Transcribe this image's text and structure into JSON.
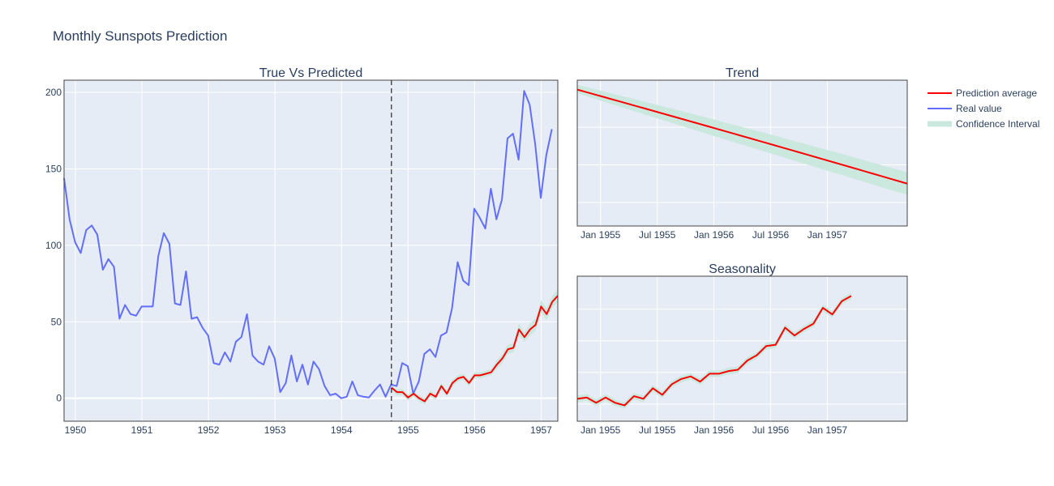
{
  "title": "Monthly Sunspots Prediction",
  "colors": {
    "plot_bg": "#e5ecf6",
    "grid": "#ffffff",
    "real": "#636efa",
    "prediction": "#ff0000",
    "confidence": "#cbe8de",
    "text": "#2a3f5f"
  },
  "legend": {
    "position": "right",
    "items": [
      {
        "label": "Prediction average",
        "color": "#ff0000",
        "style": "line"
      },
      {
        "label": "Real value",
        "color": "#636efa",
        "style": "line"
      },
      {
        "label": "Confidence Interval",
        "color": "#cbe8de",
        "style": "band"
      }
    ]
  },
  "chart_data": [
    {
      "type": "line",
      "title": "True Vs Predicted",
      "x_unit": "year",
      "xlim": [
        1949.83,
        1957.25
      ],
      "ylim": [
        -15,
        208
      ],
      "x_ticks": [
        {
          "value": 1950,
          "label": "1950"
        },
        {
          "value": 1951,
          "label": "1951"
        },
        {
          "value": 1952,
          "label": "1952"
        },
        {
          "value": 1953,
          "label": "1953"
        },
        {
          "value": 1954,
          "label": "1954"
        },
        {
          "value": 1955,
          "label": "1955"
        },
        {
          "value": 1956,
          "label": "1956"
        },
        {
          "value": 1957,
          "label": "1957"
        }
      ],
      "y_ticks": [
        {
          "value": 0,
          "label": "0"
        },
        {
          "value": 50,
          "label": "50"
        },
        {
          "value": 100,
          "label": "100"
        },
        {
          "value": 150,
          "label": "150"
        },
        {
          "value": 200,
          "label": "200"
        }
      ],
      "grid": true,
      "split_marker_x": 1954.75,
      "series": [
        {
          "name": "Real value",
          "x_start": 1949.83,
          "x_step": 0.0833,
          "values": [
            144,
            117,
            102,
            95,
            110,
            113,
            107,
            84,
            91,
            86,
            52,
            61,
            55,
            54,
            60,
            60,
            60,
            93,
            108,
            101,
            62,
            61,
            83,
            52,
            53,
            46,
            41,
            23,
            22,
            30,
            24,
            37,
            40,
            55,
            28,
            24,
            22,
            34,
            26,
            4,
            10,
            28,
            11,
            22,
            9,
            24,
            19,
            8,
            2,
            3,
            0,
            1,
            11,
            2,
            1,
            0.5,
            5,
            9,
            1,
            9,
            8,
            23,
            21,
            3,
            11,
            29,
            32,
            27,
            41,
            43,
            59,
            89,
            77,
            74,
            124,
            118,
            111,
            137,
            117,
            130,
            170,
            173,
            156,
            201,
            192,
            166,
            131,
            159,
            176
          ]
        },
        {
          "name": "Prediction average",
          "x_start": 1954.75,
          "x_step": 0.0833,
          "values": [
            7,
            4,
            4,
            0.5,
            3,
            0,
            -2,
            3,
            1,
            8,
            3,
            10,
            13,
            14,
            10,
            15,
            15,
            16,
            17,
            22,
            26,
            32,
            33,
            45,
            40,
            45,
            48,
            60,
            55,
            63,
            67
          ],
          "lower": [
            5,
            2,
            2,
            -1.5,
            1,
            -2,
            -4,
            1,
            -1,
            6,
            1,
            8,
            11,
            12,
            8,
            13,
            13,
            14,
            15,
            19,
            23,
            29,
            30,
            41,
            37,
            41,
            44,
            56,
            51,
            59,
            63
          ],
          "upper": [
            9,
            6,
            6,
            2.5,
            5,
            2,
            0,
            5,
            3,
            10,
            5,
            12,
            15,
            16,
            12,
            17,
            17,
            18,
            19,
            25,
            29,
            35,
            36,
            49,
            43,
            49,
            52,
            64,
            59,
            67,
            71
          ]
        }
      ]
    },
    {
      "type": "line",
      "title": "Trend",
      "x_unit": "year",
      "xlim": [
        1954.67,
        1957.58
      ],
      "x_ticks": [
        {
          "value": 1954.875,
          "label": "Jan 1955"
        },
        {
          "value": 1955.375,
          "label": "Jul 1955"
        },
        {
          "value": 1955.875,
          "label": "Jan 1956"
        },
        {
          "value": 1956.375,
          "label": "Jul 1956"
        },
        {
          "value": 1956.875,
          "label": "Jan 1957"
        }
      ],
      "y_ticks_visible": false,
      "grid": true,
      "series": [
        {
          "name": "Prediction average",
          "x": [
            1954.67,
            1957.58
          ],
          "values": [
            1.0,
            0.0
          ],
          "lower": [
            0.96,
            -0.12
          ],
          "upper": [
            1.05,
            0.12
          ],
          "curvature": 0.06
        }
      ]
    },
    {
      "type": "line",
      "title": "Seasonality",
      "x_unit": "year",
      "xlim": [
        1954.67,
        1957.58
      ],
      "x_ticks": [
        {
          "value": 1954.875,
          "label": "Jan 1955"
        },
        {
          "value": 1955.375,
          "label": "Jul 1955"
        },
        {
          "value": 1955.875,
          "label": "Jan 1956"
        },
        {
          "value": 1956.375,
          "label": "Jul 1956"
        },
        {
          "value": 1956.875,
          "label": "Jan 1957"
        }
      ],
      "y_ticks_visible": false,
      "grid": true,
      "series": [
        {
          "name": "Prediction average",
          "x_start": 1954.67,
          "x_step": 0.0833,
          "values": [
            0.12,
            0.13,
            0.09,
            0.13,
            0.09,
            0.07,
            0.14,
            0.12,
            0.2,
            0.15,
            0.23,
            0.27,
            0.29,
            0.25,
            0.31,
            0.31,
            0.33,
            0.34,
            0.41,
            0.45,
            0.52,
            0.53,
            0.66,
            0.6,
            0.65,
            0.69,
            0.81,
            0.76,
            0.86,
            0.9
          ],
          "band": 0.025
        }
      ]
    }
  ]
}
